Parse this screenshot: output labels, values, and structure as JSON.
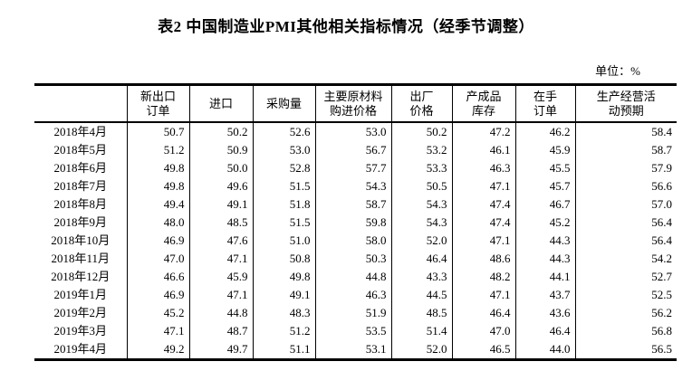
{
  "page": {
    "title": "表2  中国制造业PMI其他相关指标情况（经季节调整）",
    "unit_label": "单位：%"
  },
  "table": {
    "columns": [
      "",
      "新出口\n订单",
      "进口",
      "采购量",
      "主要原材料\n购进价格",
      "出厂\n价格",
      "产成品\n库存",
      "在手\n订单",
      "生产经营活\n动预期"
    ],
    "rows": [
      {
        "label": "2018年4月",
        "values": [
          "50.7",
          "50.2",
          "52.6",
          "53.0",
          "50.2",
          "47.2",
          "46.2",
          "58.4"
        ]
      },
      {
        "label": "2018年5月",
        "values": [
          "51.2",
          "50.9",
          "53.0",
          "56.7",
          "53.2",
          "46.1",
          "45.9",
          "58.7"
        ]
      },
      {
        "label": "2018年6月",
        "values": [
          "49.8",
          "50.0",
          "52.8",
          "57.7",
          "53.3",
          "46.3",
          "45.5",
          "57.9"
        ]
      },
      {
        "label": "2018年7月",
        "values": [
          "49.8",
          "49.6",
          "51.5",
          "54.3",
          "50.5",
          "47.1",
          "45.7",
          "56.6"
        ]
      },
      {
        "label": "2018年8月",
        "values": [
          "49.4",
          "49.1",
          "51.8",
          "58.7",
          "54.3",
          "47.4",
          "46.7",
          "57.0"
        ]
      },
      {
        "label": "2018年9月",
        "values": [
          "48.0",
          "48.5",
          "51.5",
          "59.8",
          "54.3",
          "47.4",
          "45.2",
          "56.4"
        ]
      },
      {
        "label": "2018年10月",
        "values": [
          "46.9",
          "47.6",
          "51.0",
          "58.0",
          "52.0",
          "47.1",
          "44.3",
          "56.4"
        ]
      },
      {
        "label": "2018年11月",
        "values": [
          "47.0",
          "47.1",
          "50.8",
          "50.3",
          "46.4",
          "48.6",
          "44.3",
          "54.2"
        ]
      },
      {
        "label": "2018年12月",
        "values": [
          "46.6",
          "45.9",
          "49.8",
          "44.8",
          "43.3",
          "48.2",
          "44.1",
          "52.7"
        ]
      },
      {
        "label": "2019年1月",
        "values": [
          "46.9",
          "47.1",
          "49.1",
          "46.3",
          "44.5",
          "47.1",
          "43.7",
          "52.5"
        ]
      },
      {
        "label": "2019年2月",
        "values": [
          "45.2",
          "44.8",
          "48.3",
          "51.9",
          "48.5",
          "46.4",
          "43.6",
          "56.2"
        ]
      },
      {
        "label": "2019年3月",
        "values": [
          "47.1",
          "48.7",
          "51.2",
          "53.5",
          "51.4",
          "47.0",
          "46.4",
          "56.8"
        ]
      },
      {
        "label": "2019年4月",
        "values": [
          "49.2",
          "49.7",
          "51.1",
          "53.1",
          "52.0",
          "46.5",
          "44.0",
          "56.5"
        ]
      }
    ]
  }
}
